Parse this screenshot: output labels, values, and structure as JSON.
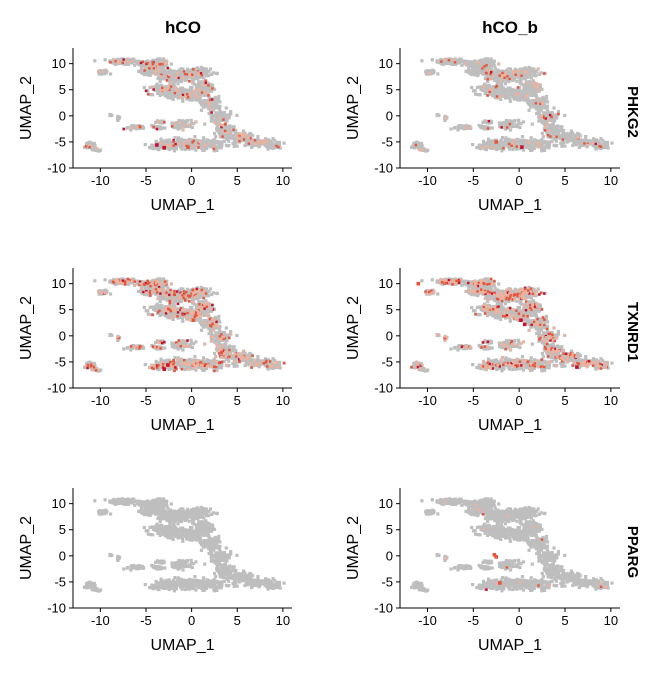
{
  "figure": {
    "column_titles": [
      "hCO",
      "hCO_b"
    ],
    "row_labels": [
      "PHKG2",
      "TXNRD1",
      "PPARG"
    ]
  },
  "colors": {
    "cell_gray": "#bebebe",
    "expr_low": "#f2b19a",
    "expr_mid": "#e8553a",
    "expr_high": "#c8102e",
    "axis": "#000000"
  },
  "chart_data": [
    {
      "type": "scatter",
      "dataset": "hCO",
      "gene": "PHKG2",
      "xlabel": "UMAP_1",
      "ylabel": "UMAP_2",
      "xlim": [
        -13,
        11
      ],
      "ylim": [
        -10,
        13
      ],
      "x_ticks": [
        -10,
        -5,
        0,
        5,
        10
      ],
      "y_ticks": [
        -10,
        -5,
        0,
        5,
        10
      ],
      "expression_level": 0.35,
      "highlights": [
        {
          "x": -3.8,
          "y": -5.6,
          "level": "high"
        },
        {
          "x": -3.0,
          "y": -6.1,
          "level": "high"
        },
        {
          "x": -0.4,
          "y": -6.0,
          "level": "mid"
        }
      ]
    },
    {
      "type": "scatter",
      "dataset": "hCO_b",
      "gene": "PHKG2",
      "xlabel": "UMAP_1",
      "ylabel": "UMAP_2",
      "xlim": [
        -13,
        11
      ],
      "ylim": [
        -10,
        13
      ],
      "x_ticks": [
        -10,
        -5,
        0,
        5,
        10
      ],
      "y_ticks": [
        -10,
        -5,
        0,
        5,
        10
      ],
      "expression_level": 0.15,
      "highlights": [
        {
          "x": 0.3,
          "y": -6.0,
          "level": "high"
        },
        {
          "x": -2.5,
          "y": -5.0,
          "level": "mid"
        }
      ]
    },
    {
      "type": "scatter",
      "dataset": "hCO",
      "gene": "TXNRD1",
      "xlabel": "UMAP_1",
      "ylabel": "UMAP_2",
      "xlim": [
        -13,
        11
      ],
      "ylim": [
        -10,
        13
      ],
      "x_ticks": [
        -10,
        -5,
        0,
        5,
        10
      ],
      "y_ticks": [
        -10,
        -5,
        0,
        5,
        10
      ],
      "expression_level": 0.6,
      "highlights": [
        {
          "x": -3.0,
          "y": -6.4,
          "level": "high"
        },
        {
          "x": -2.6,
          "y": -5.6,
          "level": "high"
        },
        {
          "x": 0.2,
          "y": 3.0,
          "level": "mid"
        }
      ]
    },
    {
      "type": "scatter",
      "dataset": "hCO_b",
      "gene": "TXNRD1",
      "xlabel": "UMAP_1",
      "ylabel": "UMAP_2",
      "xlim": [
        -13,
        11
      ],
      "ylim": [
        -10,
        13
      ],
      "x_ticks": [
        -10,
        -5,
        0,
        5,
        10
      ],
      "y_ticks": [
        -10,
        -5,
        0,
        5,
        10
      ],
      "expression_level": 0.7,
      "highlights": [
        {
          "x": 0.2,
          "y": 3.0,
          "level": "high"
        },
        {
          "x": 0.6,
          "y": 2.2,
          "level": "high"
        },
        {
          "x": 6.3,
          "y": -6.0,
          "level": "high"
        },
        {
          "x": -11.0,
          "y": 10.0,
          "level": "mid"
        }
      ]
    },
    {
      "type": "scatter",
      "dataset": "hCO",
      "gene": "PPARG",
      "xlabel": "UMAP_1",
      "ylabel": "UMAP_2",
      "xlim": [
        -13,
        11
      ],
      "ylim": [
        -10,
        13
      ],
      "x_ticks": [
        -10,
        -5,
        0,
        5,
        10
      ],
      "y_ticks": [
        -10,
        -5,
        0,
        5,
        10
      ],
      "expression_level": 0.0,
      "highlights": []
    },
    {
      "type": "scatter",
      "dataset": "hCO_b",
      "gene": "PPARG",
      "xlabel": "UMAP_1",
      "ylabel": "UMAP_2",
      "xlim": [
        -13,
        11
      ],
      "ylim": [
        -10,
        13
      ],
      "x_ticks": [
        -10,
        -5,
        0,
        5,
        10
      ],
      "y_ticks": [
        -10,
        -5,
        0,
        5,
        10
      ],
      "expression_level": 0.03,
      "highlights": [
        {
          "x": -2.5,
          "y": -0.2,
          "level": "mid"
        },
        {
          "x": -2.1,
          "y": -5.2,
          "level": "mid"
        },
        {
          "x": -2.7,
          "y": 0.2,
          "level": "mid"
        }
      ]
    }
  ]
}
